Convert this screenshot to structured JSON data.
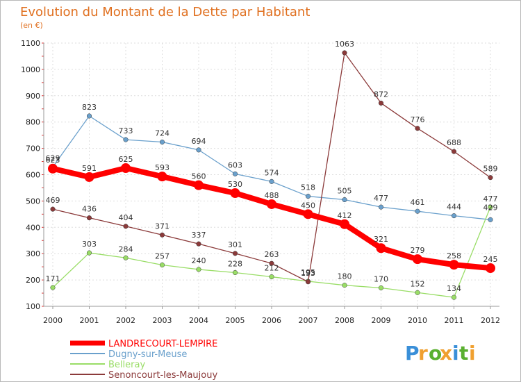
{
  "chart_data": {
    "type": "line",
    "title": "Evolution du Montant de la Dette par Habitant",
    "subtitle": "(en €)",
    "x": [
      "2000",
      "2001",
      "2002",
      "2003",
      "2004",
      "2005",
      "2006",
      "2007",
      "2008",
      "2009",
      "2010",
      "2011",
      "2012"
    ],
    "ylim": [
      100,
      1100
    ],
    "yticks": [
      100,
      200,
      300,
      400,
      500,
      600,
      700,
      800,
      900,
      1000,
      1100
    ],
    "grid": true,
    "legend_position": "bottom-left",
    "series": [
      {
        "name": "LANDRECOURT-LEMPIRE",
        "color": "#ff0000",
        "values": [
          623,
          591,
          625,
          593,
          560,
          530,
          488,
          450,
          412,
          321,
          279,
          258,
          245
        ]
      },
      {
        "name": "Dugny-sur-Meuse",
        "color": "#6aa0cc",
        "values": [
          629,
          823,
          733,
          724,
          694,
          603,
          574,
          518,
          505,
          477,
          461,
          444,
          429
        ]
      },
      {
        "name": "Belleray",
        "color": "#99dd66",
        "values": [
          171,
          303,
          284,
          257,
          240,
          228,
          212,
          195,
          180,
          170,
          152,
          134,
          477
        ]
      },
      {
        "name": "Senoncourt-les-Maujouy",
        "color": "#8b3a3a",
        "values": [
          469,
          436,
          404,
          371,
          337,
          301,
          263,
          193,
          1063,
          872,
          776,
          688,
          589
        ]
      }
    ]
  },
  "logo": {
    "letters": [
      "P",
      "r",
      "o",
      "x",
      "i",
      "t",
      "i"
    ],
    "colors": [
      "#3a8fd8",
      "#f0a030",
      "#5ab030",
      "#f0a030",
      "#3a8fd8",
      "#5ab030",
      "#f0a030"
    ]
  }
}
